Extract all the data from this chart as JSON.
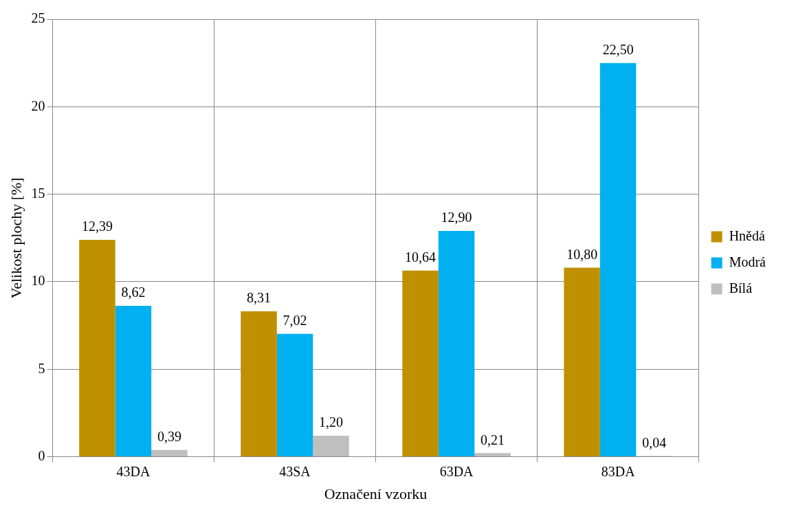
{
  "chart_data": {
    "type": "bar",
    "xlabel": "Označení vzorku",
    "ylabel": "Velikost plochy [%]",
    "categories": [
      "43DA",
      "43SA",
      "63DA",
      "83DA"
    ],
    "series": [
      {
        "name": "Hnědá",
        "color": "#bf9000",
        "values": [
          12.39,
          8.31,
          10.64,
          10.8
        ],
        "value_labels": [
          "12,39",
          "8,31",
          "10,64",
          "10,80"
        ]
      },
      {
        "name": "Modrá",
        "color": "#00b0f0",
        "values": [
          8.62,
          7.02,
          12.9,
          22.5
        ],
        "value_labels": [
          "8,62",
          "7,02",
          "12,90",
          "22,50"
        ]
      },
      {
        "name": "Bílá",
        "color": "#bfbfbf",
        "values": [
          0.39,
          1.2,
          0.21,
          0.04
        ],
        "value_labels": [
          "0,39",
          "1,20",
          "0,21",
          "0,04"
        ]
      }
    ],
    "ylim": [
      0,
      25
    ],
    "yticks": [
      0,
      5,
      10,
      15,
      20,
      25
    ],
    "grid": true,
    "legend": "right"
  }
}
